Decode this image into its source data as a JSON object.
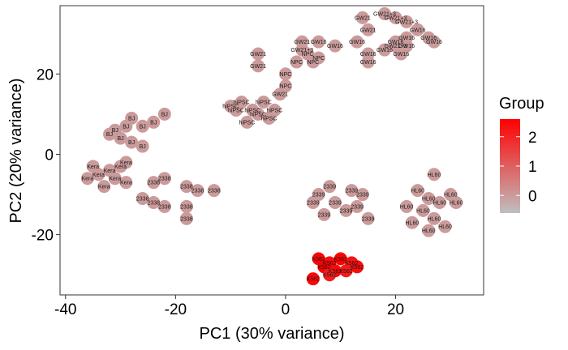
{
  "chart_data": {
    "type": "scatter",
    "title": "",
    "xlabel": "PC1 (30% variance)",
    "ylabel": "PC2 (20% variance)",
    "xlim": [
      -41,
      36
    ],
    "ylim": [
      -35,
      37
    ],
    "xticks": [
      -40,
      -20,
      0,
      20
    ],
    "yticks": [
      -20,
      0,
      20
    ],
    "xtick_labels": [
      "-40",
      "-20",
      "0",
      "20"
    ],
    "ytick_labels": [
      "-20",
      "0",
      "20"
    ],
    "grid": false,
    "legend": {
      "title": "Group",
      "placement": "right",
      "type": "continuous",
      "min": -0.6,
      "max": 2.6,
      "ticks": [
        0,
        1,
        2
      ],
      "tick_labels": [
        "0",
        "1",
        "2"
      ],
      "low_color": "#bfbfbf",
      "high_color": "#ff0000"
    },
    "point_color": "#bdbdbd",
    "points": [
      {
        "label": "GW21+3",
        "x": 18,
        "y": 35,
        "group": 0
      },
      {
        "label": "GW21+3",
        "x": 20,
        "y": 34,
        "group": 0
      },
      {
        "label": "GW21",
        "x": 14,
        "y": 34,
        "group": 0
      },
      {
        "label": "GW21",
        "x": 15,
        "y": 31,
        "group": 0
      },
      {
        "label": "GW21+3",
        "x": 22,
        "y": 33,
        "group": 0
      },
      {
        "label": "GW16",
        "x": 22,
        "y": 29,
        "group": 0
      },
      {
        "label": "GW16",
        "x": 24,
        "y": 31,
        "group": 0
      },
      {
        "label": "GW16",
        "x": 26,
        "y": 29,
        "group": 0
      },
      {
        "label": "GW16",
        "x": 27,
        "y": 28,
        "group": 0
      },
      {
        "label": "GW16",
        "x": 20,
        "y": 28,
        "group": 0
      },
      {
        "label": "GW16",
        "x": 9,
        "y": 27,
        "group": 0
      },
      {
        "label": "GW21",
        "x": 3,
        "y": 28,
        "group": 0
      },
      {
        "label": "GW16",
        "x": 6,
        "y": 28,
        "group": 0
      },
      {
        "label": "GW21+3",
        "x": 3,
        "y": 26,
        "group": 0
      },
      {
        "label": "GW16",
        "x": 18,
        "y": 26,
        "group": 0
      },
      {
        "label": "GW21+3",
        "x": 20,
        "y": 27,
        "group": 0
      },
      {
        "label": "GW16",
        "x": 22,
        "y": 27,
        "group": 0
      },
      {
        "label": "GW16",
        "x": 13,
        "y": 28,
        "group": 0
      },
      {
        "label": "GW16",
        "x": 15,
        "y": 25,
        "group": 0
      },
      {
        "label": "GW16",
        "x": 15,
        "y": 23,
        "group": 0
      },
      {
        "label": "GW16",
        "x": 21,
        "y": 25,
        "group": 0
      },
      {
        "label": "GW21",
        "x": -5,
        "y": 25,
        "group": 0
      },
      {
        "label": "GW21",
        "x": -5,
        "y": 22,
        "group": 0
      },
      {
        "label": "NPC",
        "x": 4,
        "y": 25,
        "group": 0
      },
      {
        "label": "NPC",
        "x": 5,
        "y": 23,
        "group": 0
      },
      {
        "label": "NPC",
        "x": 6,
        "y": 24,
        "group": 0
      },
      {
        "label": "NPC",
        "x": 0,
        "y": 20,
        "group": 0
      },
      {
        "label": "NPC",
        "x": 0,
        "y": 17,
        "group": 0
      },
      {
        "label": "NPC",
        "x": 2,
        "y": 23,
        "group": 0
      },
      {
        "label": "GW21",
        "x": -1,
        "y": 15,
        "group": 0
      },
      {
        "label": "hiPSC",
        "x": -8,
        "y": 13,
        "group": 0
      },
      {
        "label": "hiPSC",
        "x": -4,
        "y": 13,
        "group": 0
      },
      {
        "label": "hiPSC",
        "x": -2,
        "y": 11,
        "group": 0
      },
      {
        "label": "hiPSC",
        "x": -9,
        "y": 11,
        "group": 0
      },
      {
        "label": "hiPSC",
        "x": -5,
        "y": 10,
        "group": 0
      },
      {
        "label": "hiPSC",
        "x": -10,
        "y": 12,
        "group": 0
      },
      {
        "label": "hiPSC",
        "x": -7,
        "y": 8,
        "group": 0
      },
      {
        "label": "hiPSC",
        "x": -3,
        "y": 9,
        "group": 0
      },
      {
        "label": "hiPSC",
        "x": -6,
        "y": 11,
        "group": 0
      },
      {
        "label": "BJ",
        "x": -28,
        "y": 9,
        "group": 0
      },
      {
        "label": "BJ",
        "x": -29,
        "y": 7,
        "group": 0
      },
      {
        "label": "BJ",
        "x": -31,
        "y": 6,
        "group": 0
      },
      {
        "label": "BJ",
        "x": -30,
        "y": 4,
        "group": 0
      },
      {
        "label": "BJ",
        "x": -28,
        "y": 3,
        "group": 0
      },
      {
        "label": "BJ",
        "x": -26,
        "y": 7,
        "group": 0
      },
      {
        "label": "BJ",
        "x": -24,
        "y": 8,
        "group": 0
      },
      {
        "label": "BJ",
        "x": -22,
        "y": 10,
        "group": 0
      },
      {
        "label": "BJ",
        "x": -26,
        "y": 2,
        "group": 0
      },
      {
        "label": "BJ",
        "x": -32,
        "y": 5,
        "group": 0
      },
      {
        "label": "Kera",
        "x": -29,
        "y": -2,
        "group": 0
      },
      {
        "label": "Kera",
        "x": -30,
        "y": -3,
        "group": 0
      },
      {
        "label": "Kera",
        "x": -32,
        "y": -4,
        "group": 0
      },
      {
        "label": "Kera",
        "x": -34,
        "y": -5,
        "group": 0
      },
      {
        "label": "Kera",
        "x": -36,
        "y": -6,
        "group": 0
      },
      {
        "label": "Kera",
        "x": -31,
        "y": -6,
        "group": 0
      },
      {
        "label": "Kera",
        "x": -29,
        "y": -7,
        "group": 0
      },
      {
        "label": "Kera",
        "x": -33,
        "y": -8,
        "group": 0
      },
      {
        "label": "Kera",
        "x": -35,
        "y": -3,
        "group": 0
      },
      {
        "label": "2338",
        "x": -22,
        "y": -6,
        "group": 0
      },
      {
        "label": "2338",
        "x": -24,
        "y": -7,
        "group": 0
      },
      {
        "label": "2338",
        "x": -18,
        "y": -8,
        "group": 0
      },
      {
        "label": "2338",
        "x": -16,
        "y": -9,
        "group": 0
      },
      {
        "label": "2338",
        "x": -13,
        "y": -9,
        "group": 0
      },
      {
        "label": "2338",
        "x": -26,
        "y": -11,
        "group": 0
      },
      {
        "label": "2338",
        "x": -24,
        "y": -12,
        "group": 0
      },
      {
        "label": "2338",
        "x": -22,
        "y": -13,
        "group": 0
      },
      {
        "label": "2338",
        "x": -18,
        "y": -13,
        "group": 0
      },
      {
        "label": "2338",
        "x": -18,
        "y": -16,
        "group": 0
      },
      {
        "label": "2339",
        "x": 8,
        "y": -8,
        "group": 0
      },
      {
        "label": "2339",
        "x": 6,
        "y": -10,
        "group": 0
      },
      {
        "label": "2339",
        "x": 12,
        "y": -9,
        "group": 0
      },
      {
        "label": "2339",
        "x": 14,
        "y": -10,
        "group": 0
      },
      {
        "label": "2339",
        "x": 5,
        "y": -12,
        "group": 0
      },
      {
        "label": "2339",
        "x": 9,
        "y": -12,
        "group": 0
      },
      {
        "label": "2339",
        "x": 13,
        "y": -13,
        "group": 0
      },
      {
        "label": "2339",
        "x": 11,
        "y": -14,
        "group": 0
      },
      {
        "label": "2339",
        "x": 7,
        "y": -15,
        "group": 0
      },
      {
        "label": "2339",
        "x": 15,
        "y": -16,
        "group": 0
      },
      {
        "label": "HL60",
        "x": 27,
        "y": -5,
        "group": 0
      },
      {
        "label": "HL60",
        "x": 30,
        "y": -10,
        "group": 0
      },
      {
        "label": "HL60",
        "x": 24,
        "y": -9,
        "group": 0
      },
      {
        "label": "HL60",
        "x": 26,
        "y": -11,
        "group": 0
      },
      {
        "label": "HL60",
        "x": 28,
        "y": -12,
        "group": 0
      },
      {
        "label": "HL60",
        "x": 22,
        "y": -13,
        "group": 0
      },
      {
        "label": "HL60",
        "x": 25,
        "y": -14,
        "group": 0
      },
      {
        "label": "HL60",
        "x": 27,
        "y": -16,
        "group": 0
      },
      {
        "label": "HL60",
        "x": 23,
        "y": -17,
        "group": 0
      },
      {
        "label": "HL60",
        "x": 26,
        "y": -19,
        "group": 0
      },
      {
        "label": "HL60",
        "x": 29,
        "y": -18,
        "group": 0
      },
      {
        "label": "HL60",
        "x": 31,
        "y": -12,
        "group": 0
      },
      {
        "label": "K562",
        "x": 6,
        "y": -26,
        "group": 2.5
      },
      {
        "label": "K562",
        "x": 8,
        "y": -27,
        "group": 2.4
      },
      {
        "label": "K562",
        "x": 10,
        "y": -26,
        "group": 2.6
      },
      {
        "label": "K562",
        "x": 12,
        "y": -27,
        "group": 2.3
      },
      {
        "label": "K562",
        "x": 9,
        "y": -29,
        "group": 2.5
      },
      {
        "label": "K562",
        "x": 11,
        "y": -29,
        "group": 2.2
      },
      {
        "label": "K562",
        "x": 7,
        "y": -28,
        "group": 2.6
      },
      {
        "label": "K562",
        "x": 13,
        "y": -28,
        "group": 2.4
      },
      {
        "label": "K562",
        "x": 5,
        "y": -31,
        "group": 2.5
      },
      {
        "label": "K562",
        "x": 8,
        "y": -30,
        "group": 2.1
      }
    ]
  }
}
